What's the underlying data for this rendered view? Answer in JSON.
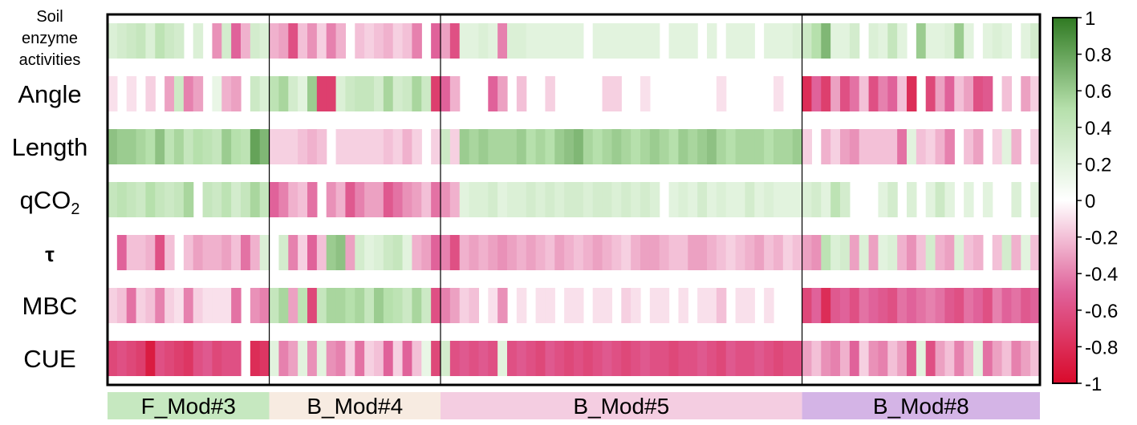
{
  "chart_data": {
    "type": "heatmap",
    "rows": [
      "Soil enzyme activities",
      "Angle",
      "Length",
      "qCO2",
      "τ",
      "MBC",
      "CUE"
    ],
    "row_label_lines": [
      [
        "Soil",
        "enzyme",
        "activities"
      ],
      [
        "Angle"
      ],
      [
        "Length"
      ],
      [
        "qCO",
        "2"
      ],
      [
        "τ"
      ],
      [
        "MBC"
      ],
      [
        "CUE"
      ]
    ],
    "modules": [
      {
        "name": "F_Mod#3",
        "columns": 17,
        "color": "#c6e8c0"
      },
      {
        "name": "B_Mod#4",
        "columns": 18,
        "color": "#f7ebe1"
      },
      {
        "name": "B_Mod#5",
        "columns": 38,
        "color": "#f4cde1"
      },
      {
        "name": "B_Mod#8",
        "columns": 25,
        "color": "#d4b4e6"
      }
    ],
    "values": [
      [
        0.25,
        0.3,
        0.35,
        0.4,
        0.25,
        0.45,
        0.35,
        0.3,
        0.0,
        0.25,
        0.0,
        -0.35,
        0.3,
        -0.5,
        -0.25,
        0.3,
        0.25,
        -0.25,
        -0.3,
        -0.6,
        -0.2,
        -0.35,
        -0.15,
        -0.4,
        -0.25,
        0.0,
        -0.2,
        -0.15,
        -0.2,
        -0.25,
        -0.15,
        -0.2,
        -0.4,
        0.0,
        -0.5,
        -0.3,
        -0.6,
        0.2,
        0.2,
        0.25,
        0.2,
        -0.4,
        0.25,
        0.25,
        0.2,
        0.2,
        0.2,
        0.2,
        0.2,
        0.2,
        0.0,
        0.2,
        0.2,
        0.2,
        0.2,
        0.2,
        0.2,
        0.2,
        0.0,
        0.2,
        0.2,
        0.2,
        0.0,
        0.2,
        0.0,
        0.2,
        0.2,
        0.2,
        0.0,
        0.2,
        0.2,
        0.2,
        0.25,
        0.35,
        0.5,
        0.7,
        0.2,
        0.2,
        0.3,
        0.0,
        0.25,
        0.2,
        0.4,
        0.2,
        0.0,
        0.6,
        0.2,
        0.2,
        0.25,
        0.6,
        0.2,
        0.0,
        0.2,
        0.25,
        0.2,
        0.0,
        0.2,
        0.3
      ],
      [
        -0.1,
        0.0,
        -0.1,
        0.0,
        -0.15,
        0.0,
        -0.3,
        0.35,
        -0.4,
        -0.3,
        0.0,
        0.15,
        -0.25,
        -0.3,
        0.0,
        0.35,
        0.25,
        0.45,
        0.55,
        0.3,
        0.2,
        0.6,
        -0.7,
        -0.7,
        0.25,
        0.35,
        0.4,
        0.4,
        0.3,
        0.55,
        0.3,
        0.35,
        0.55,
        0.35,
        -0.7,
        -0.5,
        -0.25,
        0.0,
        0.0,
        0.0,
        -0.5,
        -0.3,
        0.0,
        -0.2,
        0.0,
        0.0,
        -0.15,
        0.0,
        0.0,
        0.0,
        0.0,
        0.0,
        -0.15,
        -0.15,
        0.0,
        0.0,
        -0.1,
        0.0,
        0.0,
        0.0,
        0.0,
        0.0,
        0.0,
        0.0,
        -0.1,
        0.0,
        0.0,
        0.0,
        0.0,
        0.0,
        -0.1,
        0.0,
        0.0,
        -0.8,
        -0.5,
        -0.7,
        -0.3,
        -0.6,
        -0.45,
        -0.2,
        -0.6,
        -0.4,
        -0.5,
        -0.2,
        -0.8,
        0.0,
        -0.65,
        -0.3,
        -0.5,
        -0.2,
        -0.3,
        -0.6,
        -0.55,
        0.0,
        -0.2,
        0.0,
        -0.3,
        -0.15
      ],
      [
        0.65,
        0.6,
        0.6,
        0.55,
        0.5,
        0.65,
        0.45,
        0.55,
        0.4,
        0.5,
        0.45,
        0.4,
        0.6,
        0.5,
        0.45,
        0.8,
        0.7,
        -0.15,
        -0.15,
        -0.15,
        -0.2,
        -0.25,
        -0.2,
        0.0,
        -0.15,
        -0.15,
        -0.15,
        -0.15,
        -0.15,
        -0.2,
        -0.15,
        -0.25,
        -0.15,
        0.0,
        -0.15,
        0.35,
        -0.15,
        0.6,
        0.55,
        0.6,
        0.55,
        0.55,
        0.55,
        0.6,
        0.5,
        0.55,
        0.5,
        0.6,
        0.65,
        0.7,
        0.55,
        0.5,
        0.55,
        0.6,
        0.55,
        0.5,
        0.55,
        0.6,
        0.55,
        0.5,
        0.6,
        0.55,
        0.6,
        0.65,
        0.55,
        0.5,
        0.55,
        0.55,
        0.55,
        0.5,
        0.55,
        0.55,
        0.6,
        -0.15,
        0.0,
        -0.25,
        -0.15,
        -0.3,
        -0.35,
        -0.2,
        -0.2,
        -0.2,
        -0.2,
        -0.45,
        0.2,
        -0.2,
        -0.15,
        -0.25,
        -0.4,
        0.0,
        -0.2,
        -0.3,
        0.0,
        -0.15,
        0.2,
        -0.25,
        0.0,
        -0.15
      ],
      [
        0.4,
        0.45,
        0.4,
        0.35,
        0.5,
        0.4,
        0.35,
        0.4,
        0.55,
        0.0,
        0.4,
        0.35,
        0.45,
        0.3,
        0.4,
        0.55,
        0.4,
        -0.5,
        -0.4,
        -0.25,
        -0.2,
        -0.45,
        0.0,
        -0.35,
        -0.25,
        -0.55,
        -0.4,
        -0.3,
        -0.3,
        -0.55,
        -0.45,
        -0.35,
        -0.3,
        -0.2,
        -0.45,
        -0.35,
        -0.25,
        0.2,
        0.25,
        0.25,
        0.3,
        0.2,
        0.25,
        0.25,
        0.3,
        0.25,
        0.3,
        0.25,
        0.3,
        0.3,
        0.25,
        0.3,
        0.3,
        0.25,
        0.3,
        0.25,
        0.3,
        0.25,
        0.0,
        0.2,
        0.25,
        0.2,
        0.3,
        0.2,
        0.25,
        0.2,
        0.2,
        0.3,
        0.2,
        0.25,
        0.2,
        0.2,
        0.2,
        0.25,
        0.3,
        0.2,
        0.45,
        0.3,
        0.0,
        0.0,
        0.0,
        0.2,
        0.3,
        0.0,
        0.25,
        0.0,
        0.2,
        0.35,
        0.2,
        0.0,
        0.2,
        0.0,
        0.2,
        0.0,
        0.0,
        0.25,
        0.0,
        0.2
      ],
      [
        0.0,
        -0.5,
        -0.2,
        -0.2,
        -0.25,
        -0.6,
        -0.2,
        0.0,
        -0.2,
        -0.3,
        -0.25,
        -0.25,
        -0.3,
        -0.2,
        -0.45,
        -0.25,
        0.25,
        0.0,
        0.3,
        -0.4,
        -0.15,
        -0.5,
        -0.2,
        0.6,
        0.65,
        -0.3,
        0.3,
        0.2,
        0.25,
        0.35,
        0.4,
        0.2,
        -0.25,
        -0.3,
        -0.5,
        -0.4,
        -0.6,
        -0.25,
        -0.3,
        -0.25,
        -0.3,
        -0.35,
        -0.3,
        -0.25,
        -0.3,
        -0.25,
        -0.2,
        -0.3,
        -0.25,
        -0.2,
        -0.25,
        -0.3,
        -0.25,
        -0.2,
        -0.15,
        -0.25,
        -0.3,
        -0.3,
        -0.25,
        -0.2,
        -0.2,
        -0.3,
        -0.3,
        -0.25,
        -0.2,
        -0.15,
        -0.2,
        -0.25,
        -0.3,
        -0.2,
        -0.25,
        -0.15,
        -0.2,
        -0.3,
        -0.35,
        0.45,
        0.25,
        0.3,
        -0.3,
        0.25,
        -0.3,
        0.2,
        0.25,
        -0.25,
        -0.35,
        -0.2,
        0.3,
        -0.25,
        -0.3,
        0.25,
        -0.2,
        -0.25,
        0.0,
        -0.2,
        0.3,
        -0.25,
        0.2,
        -0.2
      ],
      [
        -0.15,
        -0.2,
        -0.45,
        -0.15,
        -0.2,
        -0.4,
        -0.15,
        -0.1,
        -0.4,
        -0.15,
        -0.1,
        -0.1,
        -0.1,
        -0.45,
        0.0,
        -0.35,
        -0.4,
        0.4,
        0.55,
        -0.3,
        0.45,
        -0.65,
        0.4,
        0.55,
        0.55,
        0.5,
        0.55,
        0.4,
        0.6,
        0.5,
        0.45,
        0.35,
        0.55,
        0.35,
        -0.6,
        -0.4,
        -0.3,
        -0.15,
        -0.2,
        0.0,
        -0.1,
        -0.35,
        0.0,
        -0.1,
        0.0,
        -0.1,
        -0.1,
        0.0,
        -0.1,
        -0.1,
        0.0,
        -0.1,
        -0.1,
        0.0,
        -0.15,
        -0.1,
        0.0,
        -0.1,
        -0.1,
        0.0,
        -0.1,
        0.0,
        -0.1,
        -0.1,
        -0.2,
        0.0,
        -0.1,
        -0.1,
        0.0,
        -0.1,
        0.0,
        0.0,
        0.0,
        -0.65,
        -0.5,
        -0.8,
        -0.55,
        -0.5,
        -0.6,
        -0.45,
        -0.5,
        -0.55,
        -0.6,
        -0.45,
        -0.5,
        -0.45,
        -0.4,
        -0.45,
        -0.55,
        -0.6,
        -0.45,
        -0.5,
        -0.6,
        -0.4,
        -0.5,
        -0.45,
        -0.55,
        -0.5
      ],
      [
        -0.65,
        -0.6,
        -0.65,
        -0.7,
        -0.9,
        -0.6,
        -0.65,
        -0.7,
        -0.75,
        -0.6,
        -0.55,
        -0.65,
        -0.6,
        -0.6,
        0.0,
        -0.8,
        -0.75,
        0.2,
        -0.4,
        -0.3,
        0.2,
        -0.35,
        0.2,
        -0.35,
        -0.4,
        -0.15,
        -0.45,
        -0.15,
        -0.2,
        -0.5,
        -0.15,
        -0.5,
        -0.2,
        0.15,
        -0.65,
        0.3,
        -0.6,
        -0.55,
        -0.6,
        -0.55,
        -0.6,
        0.2,
        -0.6,
        -0.55,
        -0.6,
        -0.65,
        -0.55,
        -0.6,
        -0.65,
        -0.6,
        -0.65,
        -0.6,
        -0.55,
        -0.6,
        -0.65,
        -0.6,
        -0.55,
        -0.6,
        -0.6,
        -0.65,
        -0.6,
        -0.6,
        -0.55,
        -0.6,
        -0.65,
        -0.55,
        -0.6,
        -0.6,
        -0.55,
        -0.6,
        -0.65,
        -0.6,
        -0.6,
        -0.3,
        -0.2,
        -0.35,
        -0.4,
        -0.25,
        -0.5,
        -0.15,
        -0.35,
        -0.4,
        -0.2,
        -0.3,
        -0.55,
        0.2,
        -0.6,
        -0.3,
        -0.2,
        -0.4,
        -0.25,
        0.2,
        -0.45,
        -0.3,
        -0.2,
        -0.4,
        -0.3,
        -0.2
      ]
    ],
    "colorbar": {
      "min": -1,
      "max": 1,
      "ticks": [
        "1",
        "0.8",
        "0.6",
        "0.4",
        "0.2",
        "0",
        "-0.2",
        "-0.4",
        "-0.6",
        "-0.8",
        "-1"
      ],
      "colors": {
        "negative_end": "#d90a2b",
        "mid_negative": "#e0629a",
        "zero": "#ffffff",
        "mid_positive": "#b6e0ac",
        "positive_end": "#2f7a22"
      }
    },
    "grid": false
  }
}
